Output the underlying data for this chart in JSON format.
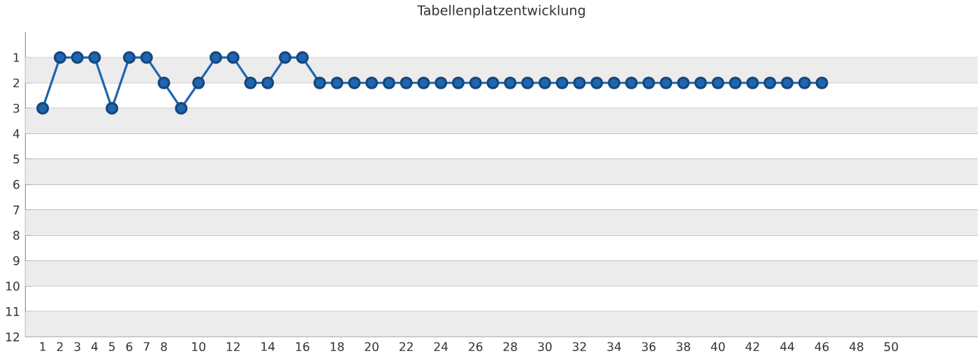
{
  "chart_data": {
    "type": "line",
    "title": "Tabellenplatzentwicklung",
    "x": [
      1,
      2,
      3,
      4,
      5,
      6,
      7,
      8,
      9,
      10,
      11,
      12,
      13,
      14,
      15,
      16,
      17,
      18,
      19,
      20,
      21,
      22,
      23,
      24,
      25,
      26,
      27,
      28,
      29,
      30,
      31,
      32,
      33,
      34,
      35,
      36,
      37,
      38,
      39,
      40,
      41,
      42,
      43,
      44,
      45,
      46
    ],
    "series": [
      {
        "color": "#1f66b0",
        "values": [
          3,
          1,
          1,
          1,
          3,
          1,
          1,
          2,
          3,
          2,
          1,
          1,
          2,
          2,
          1,
          1,
          2,
          2,
          2,
          2,
          2,
          2,
          2,
          2,
          2,
          2,
          2,
          2,
          2,
          2,
          2,
          2,
          2,
          2,
          2,
          2,
          2,
          2,
          2,
          2,
          2,
          2,
          2,
          2,
          2,
          2
        ]
      }
    ],
    "xlim": [
      0,
      55
    ],
    "ylim": [
      12,
      0
    ],
    "xticks": [
      1,
      2,
      3,
      4,
      5,
      6,
      7,
      8,
      10,
      12,
      14,
      16,
      18,
      20,
      22,
      24,
      26,
      28,
      30,
      32,
      34,
      36,
      38,
      40,
      42,
      44,
      46,
      48,
      50
    ],
    "yticks": [
      1,
      2,
      3,
      4,
      5,
      6,
      7,
      8,
      9,
      10,
      11,
      12
    ],
    "bands": [
      {
        "axis": "y",
        "from": 1,
        "to": 2,
        "color": "#ececec"
      },
      {
        "axis": "y",
        "from": 3,
        "to": 4,
        "color": "#ececec"
      },
      {
        "axis": "y",
        "from": 5,
        "to": 6,
        "color": "#ececec"
      },
      {
        "axis": "y",
        "from": 7,
        "to": 8,
        "color": "#ececec"
      },
      {
        "axis": "y",
        "from": 9,
        "to": 10,
        "color": "#ececec"
      },
      {
        "axis": "y",
        "from": 11,
        "to": 12,
        "color": "#ececec"
      }
    ],
    "grid": "y",
    "marker": "circle",
    "line_style": "solid"
  }
}
